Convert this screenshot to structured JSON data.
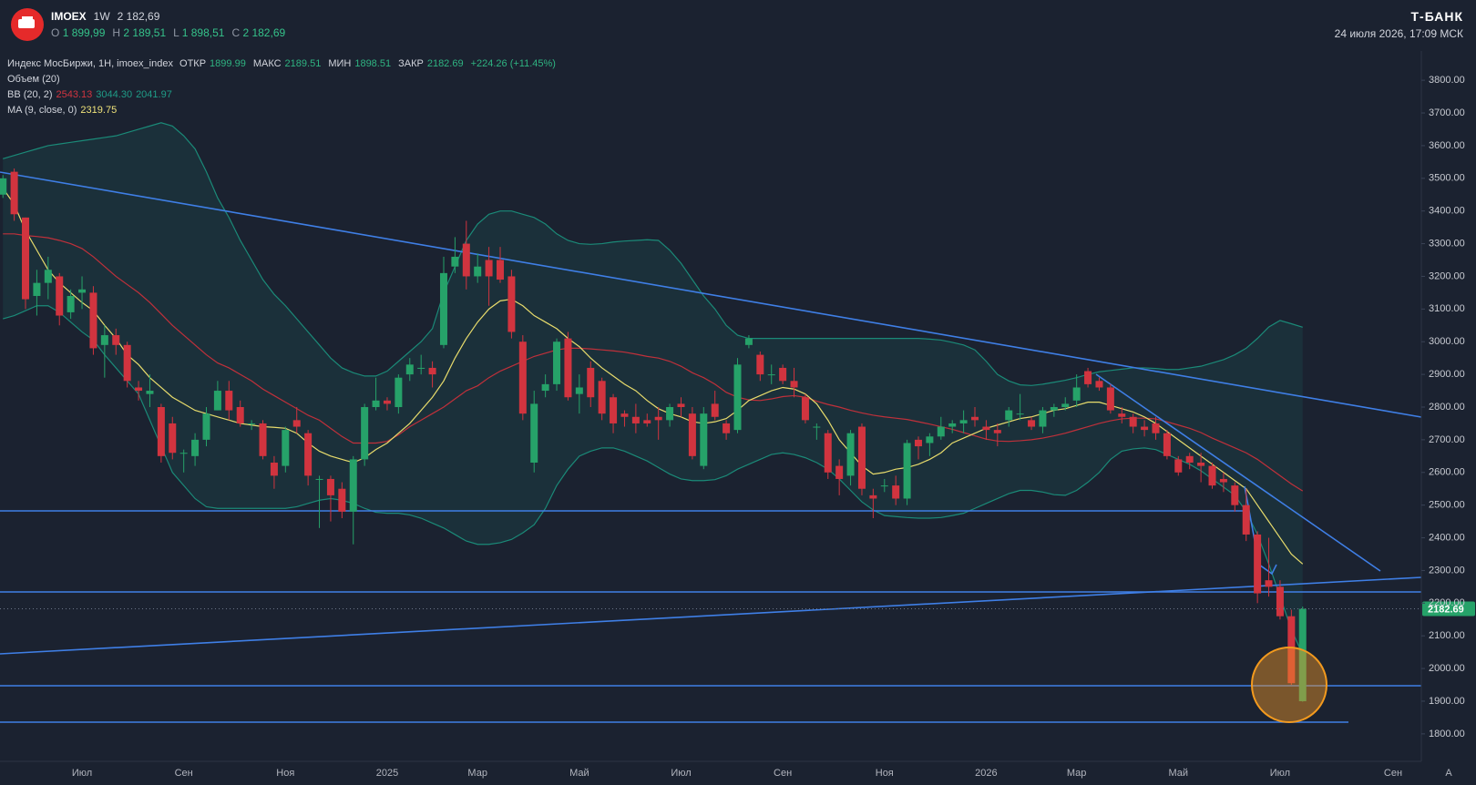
{
  "header": {
    "symbol": "IMOEX",
    "interval": "1W",
    "price": "2 182,69",
    "ohlc": [
      {
        "label": "O",
        "value": "1 899,99"
      },
      {
        "label": "H",
        "value": "2 189,51"
      },
      {
        "label": "L",
        "value": "1 898,51"
      },
      {
        "label": "C",
        "value": "2 182,69"
      }
    ],
    "brand": "Т-БАНК",
    "datetime": "24 июля 2026, 17:09 МСК"
  },
  "chart_data": {
    "type": "candlestick",
    "legend": {
      "main": {
        "name": "Индекс МосБиржи, 1Н, imoex_index",
        "fields": [
          {
            "label": "ОТКР",
            "value": "1899.99"
          },
          {
            "label": "МАКС",
            "value": "2189.51"
          },
          {
            "label": "МИН",
            "value": "1898.51"
          },
          {
            "label": "ЗАКР",
            "value": "2182.69"
          }
        ],
        "change": "+224.26 (+11.45%)"
      },
      "volume": "Объем (20)",
      "bb": {
        "name": "BB (20, 2)",
        "values": [
          "2543.13",
          "3044.30",
          "2041.97"
        ]
      },
      "ma": {
        "name": "MA (9, close, 0)",
        "value": "2319.75"
      }
    },
    "last_price_label": "2182.69",
    "corner_label": "A",
    "categories": [
      null,
      null,
      null,
      null,
      null,
      null,
      null,
      "Июл",
      null,
      null,
      null,
      null,
      null,
      null,
      null,
      null,
      "Сен",
      null,
      null,
      null,
      null,
      null,
      null,
      null,
      null,
      "Ноя",
      null,
      null,
      null,
      null,
      null,
      null,
      null,
      null,
      "2025",
      null,
      null,
      null,
      null,
      null,
      null,
      null,
      "Мар",
      null,
      null,
      null,
      null,
      null,
      null,
      null,
      null,
      "Май",
      null,
      null,
      null,
      null,
      null,
      null,
      null,
      null,
      "Июл",
      null,
      null,
      null,
      null,
      null,
      null,
      null,
      null,
      "Сен",
      null,
      null,
      null,
      null,
      null,
      null,
      null,
      null,
      "Ноя",
      null,
      null,
      null,
      null,
      null,
      null,
      null,
      null,
      "2026",
      null,
      null,
      null,
      null,
      null,
      null,
      null,
      "Мар",
      null,
      null,
      null,
      null,
      null,
      null,
      null,
      null,
      "Май",
      null,
      null,
      null,
      null,
      null,
      null,
      null,
      null,
      "Июл",
      null,
      null,
      null,
      null,
      null,
      null,
      null,
      null,
      null,
      "Сен",
      null,
      null
    ],
    "open": [
      3450,
      3520,
      3380,
      3140,
      3180,
      3200,
      3090,
      3150,
      3150,
      2990,
      3020,
      2990,
      2860,
      2840,
      2800,
      2750,
      2660,
      2650,
      2700,
      2790,
      2850,
      2800,
      2750,
      2750,
      2630,
      2620,
      2760,
      2720,
      2580,
      2580,
      2550,
      2480,
      2640,
      2800,
      2820,
      2800,
      2900,
      2920,
      2920,
      2990,
      3230,
      3300,
      3200,
      3250,
      3250,
      3200,
      3000,
      2630,
      2850,
      2870,
      3010,
      2840,
      2920,
      2880,
      2830,
      2780,
      2770,
      2760,
      2770,
      2760,
      2810,
      2780,
      2620,
      2810,
      2750,
      2730,
      2990,
      2960,
      2900,
      2920,
      2880,
      2830,
      2740,
      2720,
      2620,
      2590,
      2740,
      2530,
      2560,
      2560,
      2520,
      2700,
      2690,
      2710,
      2740,
      2750,
      2770,
      2740,
      2730,
      2760,
      2780,
      2760,
      2740,
      2790,
      2800,
      2820,
      2910,
      2880,
      2860,
      2780,
      2770,
      2740,
      2750,
      2720,
      2640,
      2650,
      2630,
      2620,
      2580,
      2560,
      2500,
      2410,
      2270,
      2250,
      2160,
      1899.99,
      null,
      null,
      null,
      null,
      null,
      null,
      null,
      null,
      null,
      null
    ],
    "high": [
      3510,
      3530,
      3380,
      3220,
      3260,
      3210,
      3160,
      3200,
      3170,
      3050,
      3040,
      3000,
      2880,
      2900,
      2810,
      2770,
      2670,
      2720,
      2800,
      2880,
      2880,
      2820,
      2760,
      2760,
      2650,
      2740,
      2800,
      2730,
      2590,
      2590,
      2570,
      2650,
      2810,
      2890,
      2830,
      2900,
      2950,
      2960,
      2940,
      3260,
      3320,
      3370,
      3270,
      3290,
      3290,
      3220,
      3020,
      2850,
      2900,
      3010,
      3030,
      2900,
      2940,
      2890,
      2840,
      2790,
      2810,
      2780,
      2800,
      2810,
      2830,
      2800,
      2800,
      2850,
      2760,
      2950,
      3020,
      2970,
      2930,
      2930,
      2920,
      2840,
      2750,
      2730,
      2640,
      2730,
      2750,
      2550,
      2580,
      2590,
      2700,
      2710,
      2720,
      2770,
      2760,
      2790,
      2800,
      2760,
      2750,
      2800,
      2840,
      2770,
      2800,
      2810,
      2830,
      2900,
      2920,
      2890,
      2870,
      2800,
      2780,
      2760,
      2770,
      2730,
      2650,
      2660,
      2660,
      2630,
      2600,
      2570,
      2550,
      2420,
      2400,
      2270,
      2180,
      2189.51,
      null,
      null,
      null,
      null,
      null,
      null,
      null,
      null,
      null,
      null
    ],
    "low": [
      3440,
      3370,
      3100,
      3080,
      3130,
      3050,
      3070,
      3100,
      2960,
      2890,
      2960,
      2860,
      2820,
      2800,
      2630,
      2640,
      2600,
      2620,
      2680,
      2790,
      2760,
      2740,
      2730,
      2640,
      2550,
      2600,
      2720,
      2560,
      2430,
      2450,
      2460,
      2380,
      2620,
      2790,
      2790,
      2780,
      2880,
      2900,
      2860,
      2980,
      3210,
      3160,
      3180,
      3110,
      3180,
      3010,
      2760,
      2600,
      2830,
      2850,
      2820,
      2780,
      2800,
      2760,
      2720,
      2740,
      2720,
      2740,
      2700,
      2740,
      2770,
      2640,
      2610,
      2760,
      2700,
      2720,
      2980,
      2880,
      2870,
      2870,
      2830,
      2750,
      2700,
      2580,
      2530,
      2560,
      2530,
      2460,
      2540,
      2500,
      2500,
      2640,
      2650,
      2700,
      2720,
      2720,
      2740,
      2700,
      2680,
      2740,
      2760,
      2730,
      2720,
      2770,
      2790,
      2800,
      2860,
      2850,
      2780,
      2750,
      2720,
      2710,
      2700,
      2640,
      2590,
      2610,
      2570,
      2550,
      2540,
      2480,
      2390,
      2200,
      2220,
      2150,
      1950,
      1898.51,
      null,
      null,
      null,
      null,
      null,
      null,
      null,
      null,
      null,
      null
    ],
    "close": [
      3500,
      3390,
      3130,
      3180,
      3220,
      3080,
      3140,
      3160,
      2980,
      3020,
      2990,
      2880,
      2850,
      2850,
      2650,
      2660,
      2660,
      2700,
      2780,
      2850,
      2790,
      2750,
      2750,
      2650,
      2590,
      2730,
      2740,
      2590,
      2580,
      2530,
      2480,
      2640,
      2800,
      2820,
      2810,
      2890,
      2930,
      2920,
      2900,
      3210,
      3260,
      3200,
      3230,
      3200,
      3190,
      3030,
      2780,
      2810,
      2870,
      3000,
      2830,
      2860,
      2830,
      2780,
      2750,
      2770,
      2750,
      2750,
      2760,
      2800,
      2800,
      2650,
      2780,
      2770,
      2720,
      2930,
      3010,
      2900,
      2900,
      2880,
      2860,
      2760,
      2740,
      2600,
      2580,
      2720,
      2550,
      2520,
      2560,
      2520,
      2690,
      2680,
      2710,
      2740,
      2750,
      2760,
      2760,
      2730,
      2720,
      2790,
      2780,
      2740,
      2790,
      2800,
      2810,
      2860,
      2870,
      2860,
      2790,
      2770,
      2740,
      2730,
      2720,
      2650,
      2600,
      2630,
      2620,
      2560,
      2570,
      2500,
      2410,
      2230,
      2250,
      2160,
      1955,
      2182.69,
      null,
      null,
      null,
      null,
      null,
      null,
      null,
      null,
      null,
      null
    ],
    "up_color": "#26a269",
    "down_color": "#d1343f",
    "bb": {
      "band_color": "#1b8a78",
      "middle_color": "#c0303a",
      "fill": "rgba(30,150,130,0.13)",
      "upper": [
        3560,
        3570,
        3580,
        3590,
        3600,
        3605,
        3610,
        3615,
        3620,
        3625,
        3630,
        3640,
        3650,
        3660,
        3670,
        3660,
        3630,
        3590,
        3520,
        3440,
        3380,
        3310,
        3250,
        3190,
        3145,
        3110,
        3070,
        3030,
        2990,
        2950,
        2920,
        2905,
        2895,
        2895,
        2910,
        2940,
        2970,
        3000,
        3040,
        3150,
        3230,
        3310,
        3360,
        3390,
        3400,
        3400,
        3390,
        3380,
        3360,
        3330,
        3310,
        3300,
        3298,
        3300,
        3305,
        3308,
        3310,
        3312,
        3310,
        3280,
        3240,
        3190,
        3140,
        3100,
        3050,
        3020,
        3010,
        3010,
        3010,
        3010,
        3010,
        3010,
        3010,
        3010,
        3010,
        3010,
        3010,
        3010,
        3010,
        3010,
        3010,
        3010,
        3008,
        3005,
        2998,
        2990,
        2975,
        2940,
        2900,
        2880,
        2868,
        2866,
        2870,
        2876,
        2882,
        2890,
        2900,
        2908,
        2912,
        2916,
        2920,
        2920,
        2918,
        2915,
        2915,
        2920,
        2925,
        2935,
        2945,
        2960,
        2980,
        3010,
        3045,
        3065,
        3055,
        3044.3,
        null,
        null,
        null,
        null,
        null,
        null,
        null,
        null,
        null,
        null
      ],
      "middle": [
        3330,
        3330,
        3325,
        3322,
        3318,
        3310,
        3300,
        3285,
        3260,
        3230,
        3200,
        3175,
        3150,
        3120,
        3085,
        3050,
        3020,
        2990,
        2960,
        2935,
        2920,
        2900,
        2880,
        2855,
        2835,
        2815,
        2795,
        2775,
        2760,
        2735,
        2710,
        2690,
        2690,
        2690,
        2695,
        2715,
        2740,
        2760,
        2780,
        2800,
        2825,
        2850,
        2865,
        2890,
        2910,
        2925,
        2940,
        2955,
        2965,
        2975,
        2980,
        2980,
        2978,
        2975,
        2972,
        2968,
        2962,
        2955,
        2950,
        2940,
        2925,
        2905,
        2890,
        2870,
        2845,
        2830,
        2822,
        2820,
        2825,
        2832,
        2835,
        2830,
        2818,
        2808,
        2800,
        2790,
        2782,
        2775,
        2770,
        2766,
        2762,
        2755,
        2748,
        2740,
        2732,
        2722,
        2712,
        2702,
        2696,
        2695,
        2697,
        2700,
        2705,
        2712,
        2720,
        2730,
        2740,
        2750,
        2758,
        2764,
        2766,
        2766,
        2764,
        2755,
        2745,
        2735,
        2722,
        2705,
        2690,
        2675,
        2660,
        2640,
        2615,
        2590,
        2565,
        2543.13,
        null,
        null,
        null,
        null,
        null,
        null,
        null,
        null,
        null,
        null
      ],
      "lower": [
        3070,
        3080,
        3095,
        3110,
        3110,
        3090,
        3060,
        3030,
        3005,
        2960,
        2920,
        2880,
        2840,
        2760,
        2680,
        2600,
        2560,
        2520,
        2495,
        2490,
        2490,
        2490,
        2490,
        2490,
        2490,
        2490,
        2495,
        2505,
        2515,
        2520,
        2515,
        2505,
        2490,
        2478,
        2475,
        2475,
        2470,
        2460,
        2445,
        2430,
        2410,
        2390,
        2380,
        2380,
        2385,
        2395,
        2415,
        2440,
        2490,
        2560,
        2610,
        2650,
        2665,
        2675,
        2675,
        2665,
        2650,
        2635,
        2615,
        2595,
        2580,
        2575,
        2575,
        2578,
        2590,
        2610,
        2625,
        2640,
        2655,
        2660,
        2655,
        2645,
        2630,
        2610,
        2580,
        2545,
        2510,
        2485,
        2468,
        2465,
        2462,
        2460,
        2460,
        2462,
        2468,
        2475,
        2490,
        2505,
        2520,
        2535,
        2545,
        2545,
        2540,
        2532,
        2530,
        2545,
        2570,
        2600,
        2640,
        2665,
        2672,
        2675,
        2670,
        2655,
        2640,
        2625,
        2605,
        2580,
        2555,
        2530,
        2480,
        2410,
        2320,
        2220,
        2120,
        2041.97,
        null,
        null,
        null,
        null,
        null,
        null,
        null,
        null,
        null,
        null
      ]
    },
    "ma": {
      "color": "#e8dc6c",
      "values": [
        3470,
        3420,
        3340,
        3280,
        3220,
        3180,
        3150,
        3120,
        3095,
        3050,
        3010,
        2960,
        2930,
        2890,
        2860,
        2830,
        2810,
        2790,
        2780,
        2770,
        2760,
        2750,
        2745,
        2740,
        2738,
        2735,
        2720,
        2690,
        2665,
        2650,
        2640,
        2630,
        2645,
        2670,
        2690,
        2720,
        2750,
        2790,
        2830,
        2880,
        2950,
        3010,
        3060,
        3100,
        3125,
        3130,
        3110,
        3080,
        3060,
        3040,
        3010,
        2985,
        2950,
        2920,
        2895,
        2870,
        2850,
        2820,
        2795,
        2780,
        2770,
        2755,
        2750,
        2755,
        2765,
        2790,
        2820,
        2835,
        2850,
        2860,
        2855,
        2840,
        2810,
        2760,
        2700,
        2660,
        2620,
        2595,
        2600,
        2610,
        2615,
        2625,
        2640,
        2660,
        2690,
        2705,
        2720,
        2735,
        2745,
        2755,
        2765,
        2770,
        2780,
        2790,
        2795,
        2805,
        2815,
        2815,
        2805,
        2795,
        2785,
        2770,
        2750,
        2725,
        2700,
        2675,
        2650,
        2625,
        2600,
        2575,
        2550,
        2500,
        2450,
        2400,
        2350,
        2319.75,
        null,
        null,
        null,
        null,
        null,
        null,
        null,
        null,
        null,
        null
      ]
    },
    "ylim": [
      1716,
      3884
    ],
    "yticks": [
      {
        "value": 1800,
        "label": "1800.00"
      },
      {
        "value": 1900,
        "label": "1900.00"
      },
      {
        "value": 2000,
        "label": "2000.00"
      },
      {
        "value": 2100,
        "label": "2100.00"
      },
      {
        "value": 2200,
        "label": "2200.00"
      },
      {
        "value": 2300,
        "label": "2300.00"
      },
      {
        "value": 2400,
        "label": "2400.00"
      },
      {
        "value": 2500,
        "label": "2500.00"
      },
      {
        "value": 2600,
        "label": "2600.00"
      },
      {
        "value": 2700,
        "label": "2700.00"
      },
      {
        "value": 2800,
        "label": "2800.00"
      },
      {
        "value": 2900,
        "label": "2900.00"
      },
      {
        "value": 3000,
        "label": "3000.00"
      },
      {
        "value": 3100,
        "label": "3100.00"
      },
      {
        "value": 3200,
        "label": "3200.00"
      },
      {
        "value": 3300,
        "label": "3300.00"
      },
      {
        "value": 3400,
        "label": "3400.00"
      },
      {
        "value": 3500,
        "label": "3500.00"
      },
      {
        "value": 3600,
        "label": "3600.00"
      },
      {
        "value": 3700,
        "label": "3700.00"
      },
      {
        "value": 3800,
        "label": "3800.00"
      }
    ]
  }
}
